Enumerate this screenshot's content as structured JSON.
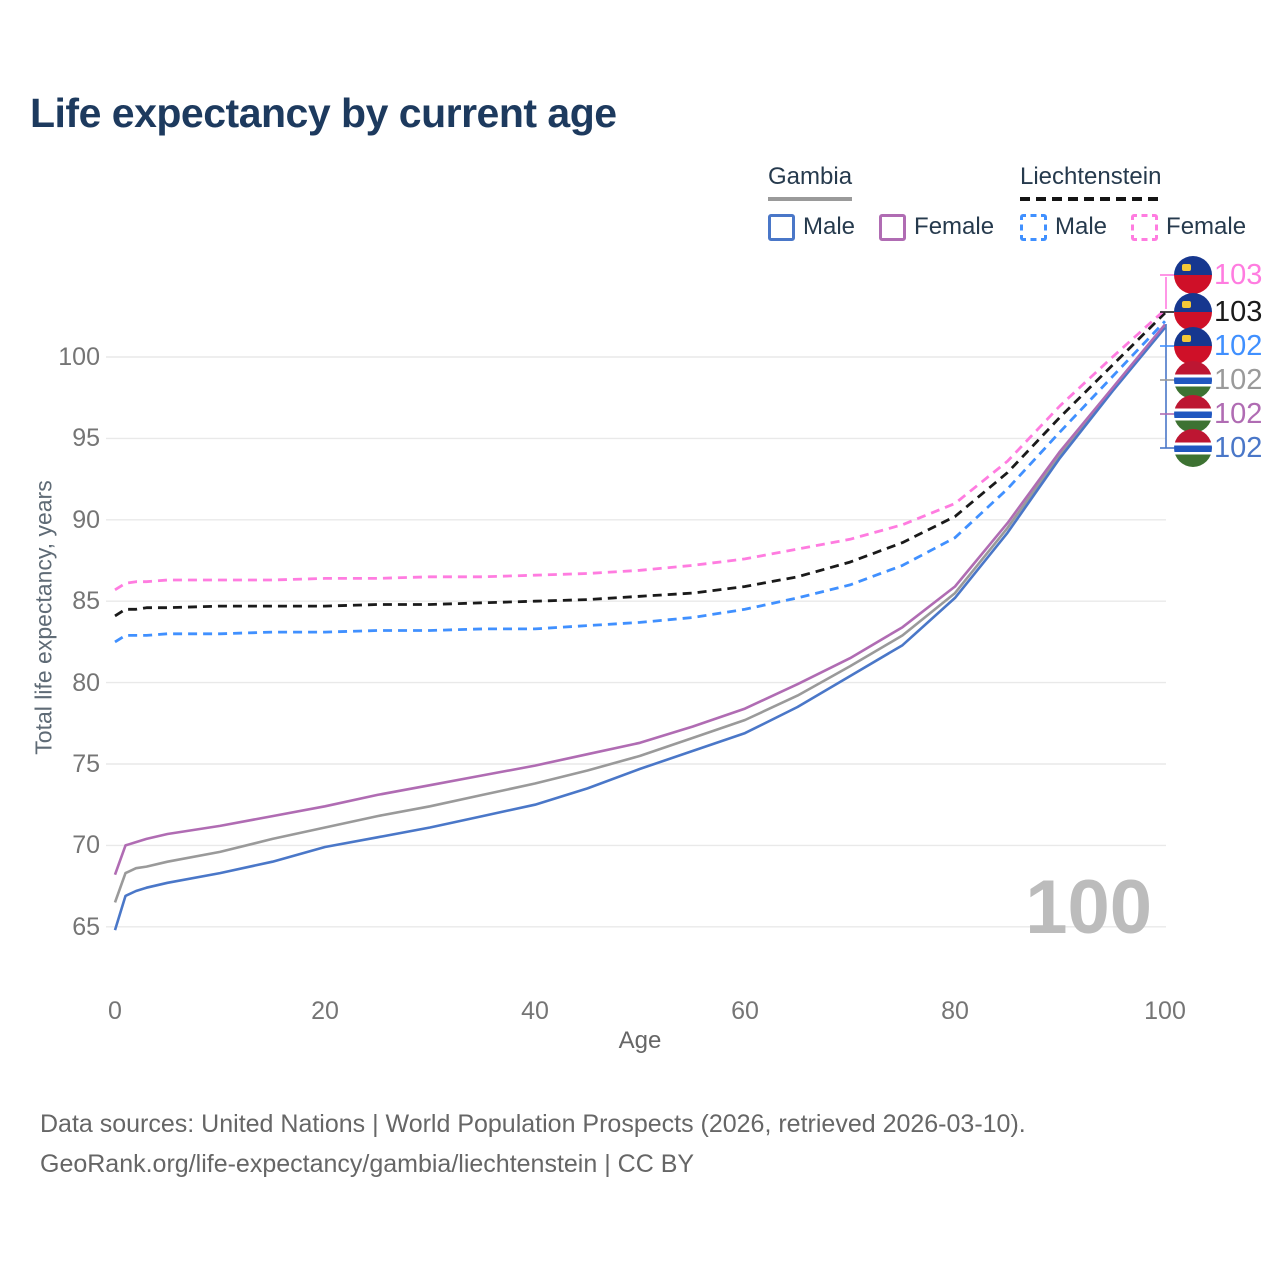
{
  "title": "Life expectancy by current age",
  "legend": {
    "gambia": {
      "label": "Gambia",
      "male": "Male",
      "female": "Female"
    },
    "liechtenstein": {
      "label": "Liechtenstein",
      "male": "Male",
      "female": "Female"
    }
  },
  "watermark": "100",
  "footer": {
    "line1": "Data sources: United Nations | World Population Prospects (2026, retrieved 2026-03-10).",
    "line2": "GeoRank.org/life-expectancy/gambia/liechtenstein | CC BY"
  },
  "colors": {
    "grid": "#e9e9e9",
    "title": "#1d3a5e",
    "tick": "#757575",
    "gambia_male": "#4a77c8",
    "gambia_female": "#b06cb3",
    "gambia_total": "#9a9a9a",
    "liechtenstein_male": "#4090ff",
    "liechtenstein_female": "#ff7ce0",
    "liechtenstein_total": "#1a1a1a"
  },
  "chart_data": {
    "type": "line",
    "title": "Life expectancy by current age",
    "xlabel": "Age",
    "ylabel": "Total life expectancy, years",
    "x_ticks": [
      0,
      20,
      40,
      60,
      80,
      100
    ],
    "y_ticks": [
      65,
      70,
      75,
      80,
      85,
      90,
      95,
      100
    ],
    "xlim": [
      0,
      100
    ],
    "ylim": [
      63.5,
      104
    ],
    "grid": "horizontal",
    "legend_position": "top-right",
    "x": [
      0,
      1,
      2,
      3,
      5,
      10,
      15,
      20,
      25,
      30,
      35,
      40,
      45,
      50,
      55,
      60,
      65,
      70,
      75,
      80,
      85,
      90,
      95,
      100
    ],
    "series": [
      {
        "name": "Gambia Total",
        "country": "Gambia",
        "sex": "Both",
        "color": "#9a9a9a",
        "dashed": false,
        "end_label": "102",
        "values": [
          66.5,
          68.3,
          68.6,
          68.7,
          69.0,
          69.6,
          70.4,
          71.1,
          71.8,
          72.4,
          73.1,
          73.8,
          74.6,
          75.5,
          76.6,
          77.7,
          79.2,
          81.0,
          82.9,
          85.5,
          89.5,
          94.0,
          98.0,
          101.9
        ]
      },
      {
        "name": "Gambia Male",
        "country": "Gambia",
        "sex": "Male",
        "color": "#4a77c8",
        "dashed": false,
        "end_label": "102",
        "values": [
          64.8,
          66.9,
          67.2,
          67.4,
          67.7,
          68.3,
          69.0,
          69.9,
          70.5,
          71.1,
          71.8,
          72.5,
          73.5,
          74.7,
          75.8,
          76.9,
          78.5,
          80.4,
          82.3,
          85.2,
          89.2,
          93.8,
          97.9,
          101.8
        ]
      },
      {
        "name": "Gambia Female",
        "country": "Gambia",
        "sex": "Female",
        "color": "#b06cb3",
        "dashed": false,
        "end_label": "102",
        "values": [
          68.2,
          70.0,
          70.2,
          70.4,
          70.7,
          71.2,
          71.8,
          72.4,
          73.1,
          73.7,
          74.3,
          74.9,
          75.6,
          76.3,
          77.3,
          78.4,
          79.9,
          81.5,
          83.4,
          85.9,
          89.8,
          94.2,
          98.1,
          102.0
        ]
      },
      {
        "name": "Liechtenstein Male",
        "country": "Liechtenstein",
        "sex": "Male",
        "color": "#4090ff",
        "dashed": true,
        "end_label": "102",
        "values": [
          82.5,
          82.9,
          82.9,
          82.9,
          83.0,
          83.0,
          83.1,
          83.1,
          83.2,
          83.2,
          83.3,
          83.3,
          83.5,
          83.7,
          84.0,
          84.5,
          85.2,
          86.0,
          87.2,
          88.9,
          91.9,
          95.4,
          98.8,
          102.2
        ]
      },
      {
        "name": "Liechtenstein Total",
        "country": "Liechtenstein",
        "sex": "Both",
        "color": "#1a1a1a",
        "dashed": true,
        "end_label": "103",
        "values": [
          84.1,
          84.5,
          84.5,
          84.6,
          84.6,
          84.7,
          84.7,
          84.7,
          84.8,
          84.8,
          84.9,
          85.0,
          85.1,
          85.3,
          85.5,
          85.9,
          86.5,
          87.4,
          88.6,
          90.2,
          92.9,
          96.3,
          99.5,
          102.7
        ]
      },
      {
        "name": "Liechtenstein Female",
        "country": "Liechtenstein",
        "sex": "Female",
        "color": "#ff7ce0",
        "dashed": true,
        "end_label": "103",
        "values": [
          85.7,
          86.1,
          86.2,
          86.2,
          86.3,
          86.3,
          86.3,
          86.4,
          86.4,
          86.5,
          86.5,
          86.6,
          86.7,
          86.9,
          87.2,
          87.6,
          88.2,
          88.8,
          89.7,
          91.0,
          93.6,
          97.0,
          100.0,
          102.9
        ]
      }
    ],
    "end_labels": [
      {
        "value": "103",
        "flag": "liechtenstein",
        "series": "Liechtenstein Female",
        "color": "#ff7ce0"
      },
      {
        "value": "103",
        "flag": "liechtenstein",
        "series": "Liechtenstein Total",
        "color": "#1a1a1a"
      },
      {
        "value": "102",
        "flag": "liechtenstein",
        "series": "Liechtenstein Male",
        "color": "#4090ff"
      },
      {
        "value": "102",
        "flag": "gambia",
        "series": "Gambia Total",
        "color": "#9a9a9a"
      },
      {
        "value": "102",
        "flag": "gambia",
        "series": "Gambia Female",
        "color": "#b06cb3"
      },
      {
        "value": "102",
        "flag": "gambia",
        "series": "Gambia Male",
        "color": "#4a77c8"
      }
    ]
  }
}
